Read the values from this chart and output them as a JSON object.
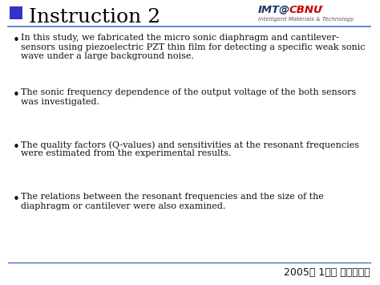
{
  "title": "Instruction 2",
  "title_fontsize": 18,
  "title_color": "#000000",
  "title_square_color": "#3333CC",
  "bg_color": "#FFFFFF",
  "header_line_color": "#4472C4",
  "footer_line_color": "#4472C4",
  "logo_imt_color": "#1F3864",
  "logo_at_color": "#1F3864",
  "logo_cbnu_color": "#CC0000",
  "logo_sub_color": "#555555",
  "logo_text2": "Intelligent Materials & Technology",
  "bullet_points": [
    "In this study, we fabricated the micro sonic diaphragm and cantilever-\nsensors using piezoelectric PZT thin film for detecting a specific weak sonic\nwave under a large background noise.",
    "The sonic frequency dependence of the output voltage of the both sensors\nwas investigated.",
    "The quality factors (Q-values) and sensitivities at the resonant frequencies\nwere estimated from the experimental results.",
    "The relations between the resonant frequencies and the size of the\ndiaphragm or cantilever were also examined."
  ],
  "bullet_fontsize": 8.0,
  "bullet_color": "#111111",
  "footer_text": "2005년 1학기 논문세미나",
  "footer_fontsize": 9
}
